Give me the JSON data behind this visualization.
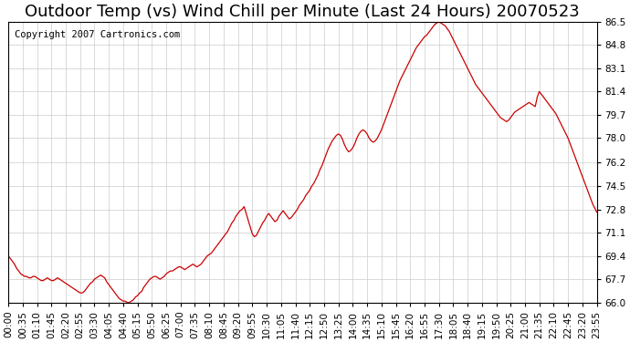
{
  "title": "Outdoor Temp (vs) Wind Chill per Minute (Last 24 Hours) 20070523",
  "copyright_text": "Copyright 2007 Cartronics.com",
  "line_color": "#cc0000",
  "background_color": "#ffffff",
  "grid_color": "#cccccc",
  "ylim": [
    66.0,
    86.5
  ],
  "yticks": [
    66.0,
    67.7,
    69.4,
    71.1,
    72.8,
    74.5,
    76.2,
    78.0,
    79.7,
    81.4,
    83.1,
    84.8,
    86.5
  ],
  "title_fontsize": 13,
  "tick_fontsize": 7.5,
  "copyright_fontsize": 7.5,
  "x_tick_interval": 4,
  "total_minutes": 1440,
  "time_data": [
    0,
    5,
    10,
    15,
    20,
    25,
    30,
    35,
    40,
    45,
    50,
    55,
    60,
    65,
    70,
    75,
    80,
    85,
    90,
    95,
    100,
    105,
    110,
    115,
    120,
    125,
    130,
    135,
    140,
    145,
    150,
    155,
    160,
    165,
    170,
    175,
    180,
    185,
    190,
    195,
    200,
    205,
    210,
    215,
    220,
    225,
    230,
    235,
    240,
    245,
    250,
    255,
    260,
    265,
    270,
    275,
    280,
    285,
    290,
    295,
    300,
    305,
    310,
    315,
    320,
    325,
    330,
    335,
    340,
    345,
    350,
    355,
    360,
    365,
    370,
    375,
    380,
    385,
    390,
    395,
    400,
    405,
    410,
    415,
    420,
    425,
    430,
    435,
    440,
    445,
    450,
    455,
    460,
    465,
    470,
    475,
    480,
    485,
    490,
    495,
    500,
    505,
    510,
    515,
    520,
    525,
    530,
    535,
    540,
    545,
    550,
    555,
    560,
    565,
    570,
    575,
    580,
    585,
    590,
    595,
    600,
    605,
    610,
    615,
    620,
    625,
    630,
    635,
    640,
    645,
    650,
    655,
    660,
    665,
    670,
    675,
    680,
    685,
    690,
    695,
    700,
    705,
    710,
    715,
    720,
    725,
    730,
    735,
    740,
    745,
    750,
    755,
    760,
    765,
    770,
    775,
    780,
    785,
    790,
    795,
    800,
    805,
    810,
    815,
    820,
    825,
    830,
    835,
    840,
    845,
    850,
    855,
    860,
    865,
    870,
    875,
    880,
    885,
    890,
    895,
    900,
    905,
    910,
    915,
    920,
    925,
    930,
    935,
    940,
    945,
    950,
    955,
    960,
    965,
    970,
    975,
    980,
    985,
    990,
    995,
    1000,
    1005,
    1010,
    1015,
    1020,
    1025,
    1030,
    1035,
    1040,
    1045,
    1050,
    1055,
    1060,
    1065,
    1070,
    1075,
    1080,
    1085,
    1090,
    1095,
    1100,
    1105,
    1110,
    1115,
    1120,
    1125,
    1130,
    1135,
    1140,
    1145,
    1150,
    1155,
    1160,
    1165,
    1170,
    1175,
    1180,
    1185,
    1190,
    1195,
    1200,
    1205,
    1210,
    1215,
    1220,
    1225,
    1230,
    1235,
    1240,
    1245,
    1250,
    1255,
    1260,
    1265,
    1270,
    1275,
    1280,
    1285,
    1290,
    1295,
    1300,
    1305,
    1310,
    1315,
    1320,
    1325,
    1330,
    1335,
    1340,
    1345,
    1350,
    1355,
    1360,
    1365,
    1370,
    1375,
    1380,
    1385,
    1390,
    1395,
    1400,
    1405,
    1410,
    1415,
    1420,
    1425,
    1430,
    1435
  ],
  "temp_data": [
    69.4,
    69.2,
    69.0,
    68.8,
    68.5,
    68.3,
    68.1,
    68.0,
    67.9,
    67.9,
    67.8,
    67.8,
    67.9,
    67.9,
    67.8,
    67.7,
    67.6,
    67.6,
    67.7,
    67.8,
    67.7,
    67.6,
    67.6,
    67.7,
    67.8,
    67.7,
    67.6,
    67.5,
    67.4,
    67.3,
    67.2,
    67.1,
    67.0,
    66.9,
    66.8,
    66.7,
    66.7,
    66.8,
    67.0,
    67.2,
    67.4,
    67.5,
    67.7,
    67.8,
    67.9,
    68.0,
    67.9,
    67.8,
    67.5,
    67.3,
    67.1,
    66.9,
    66.7,
    66.5,
    66.3,
    66.2,
    66.1,
    66.1,
    66.0,
    66.0,
    66.1,
    66.2,
    66.4,
    66.5,
    66.7,
    66.8,
    67.1,
    67.3,
    67.5,
    67.7,
    67.8,
    67.9,
    67.9,
    67.8,
    67.7,
    67.8,
    67.9,
    68.1,
    68.2,
    68.3,
    68.3,
    68.4,
    68.5,
    68.6,
    68.6,
    68.5,
    68.4,
    68.5,
    68.6,
    68.7,
    68.8,
    68.7,
    68.6,
    68.7,
    68.8,
    69.0,
    69.2,
    69.4,
    69.5,
    69.6,
    69.8,
    70.0,
    70.2,
    70.4,
    70.6,
    70.8,
    71.0,
    71.2,
    71.5,
    71.8,
    72.0,
    72.3,
    72.5,
    72.7,
    72.8,
    73.0,
    72.5,
    72.0,
    71.5,
    71.0,
    70.8,
    70.9,
    71.2,
    71.5,
    71.8,
    72.0,
    72.3,
    72.5,
    72.3,
    72.1,
    71.9,
    72.0,
    72.3,
    72.5,
    72.7,
    72.5,
    72.3,
    72.1,
    72.2,
    72.4,
    72.6,
    72.8,
    73.1,
    73.3,
    73.5,
    73.8,
    74.0,
    74.2,
    74.5,
    74.7,
    75.0,
    75.3,
    75.7,
    76.0,
    76.4,
    76.8,
    77.2,
    77.5,
    77.8,
    78.0,
    78.2,
    78.3,
    78.2,
    77.9,
    77.5,
    77.2,
    77.0,
    77.1,
    77.3,
    77.6,
    78.0,
    78.3,
    78.5,
    78.6,
    78.5,
    78.3,
    78.0,
    77.8,
    77.7,
    77.8,
    78.0,
    78.3,
    78.6,
    79.0,
    79.4,
    79.8,
    80.2,
    80.6,
    81.0,
    81.4,
    81.8,
    82.2,
    82.5,
    82.8,
    83.1,
    83.4,
    83.7,
    84.0,
    84.3,
    84.6,
    84.8,
    85.0,
    85.2,
    85.4,
    85.5,
    85.7,
    85.9,
    86.1,
    86.3,
    86.4,
    86.5,
    86.4,
    86.3,
    86.2,
    86.0,
    85.8,
    85.5,
    85.2,
    84.9,
    84.6,
    84.3,
    84.0,
    83.7,
    83.4,
    83.1,
    82.8,
    82.5,
    82.2,
    81.9,
    81.7,
    81.5,
    81.3,
    81.1,
    80.9,
    80.7,
    80.5,
    80.3,
    80.1,
    79.9,
    79.7,
    79.5,
    79.4,
    79.3,
    79.2,
    79.3,
    79.5,
    79.7,
    79.9,
    80.0,
    80.1,
    80.2,
    80.3,
    80.4,
    80.5,
    80.6,
    80.5,
    80.4,
    80.3,
    81.0,
    81.4,
    81.2,
    81.0,
    80.8,
    80.6,
    80.4,
    80.2,
    80.0,
    79.8,
    79.5,
    79.2,
    78.9,
    78.6,
    78.3,
    78.0,
    77.6,
    77.2,
    76.8,
    76.4,
    76.0,
    75.6,
    75.2,
    74.8,
    74.4,
    74.0,
    73.6,
    73.2,
    72.9,
    72.6
  ],
  "xtick_labels": [
    "00:00",
    "00:35",
    "01:10",
    "01:45",
    "02:20",
    "02:55",
    "03:30",
    "04:05",
    "04:40",
    "05:15",
    "05:50",
    "06:25",
    "07:00",
    "07:35",
    "08:10",
    "08:45",
    "09:20",
    "09:55",
    "10:30",
    "11:05",
    "11:40",
    "12:15",
    "12:50",
    "13:25",
    "14:00",
    "14:35",
    "15:10",
    "15:45",
    "16:20",
    "16:55",
    "17:30",
    "18:05",
    "18:40",
    "19:15",
    "19:50",
    "20:25",
    "21:00",
    "21:35",
    "22:10",
    "22:45",
    "23:20",
    "23:55"
  ]
}
